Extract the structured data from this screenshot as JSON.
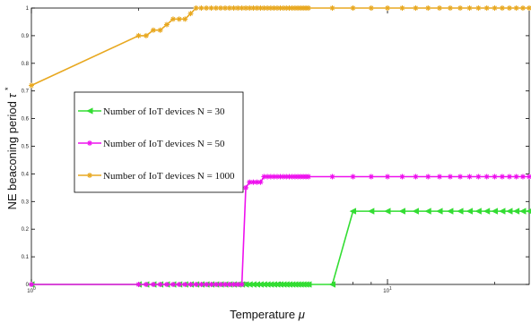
{
  "chart_data": {
    "type": "line",
    "title": "",
    "xlabel": "Temperature",
    "xlabel_symbol": "μ",
    "ylabel": "NE beaconing period",
    "ylabel_symbol": "τ",
    "ylabel_sup": "*",
    "xscale": "log",
    "xlim": [
      1,
      25
    ],
    "ylim": [
      0,
      1
    ],
    "x_ticks": [
      {
        "label_base": "10",
        "label_exp": "0"
      },
      {
        "label_base": "10",
        "label_exp": "1"
      }
    ],
    "y_ticks": [
      "0",
      "0.1",
      "0.2",
      "0.3",
      "0.4",
      "0.5",
      "0.6",
      "0.7",
      "0.8",
      "0.9",
      "1"
    ],
    "grid": false,
    "legend_position": "left-middle",
    "series": [
      {
        "name": "Number of IoT devices N = 30",
        "color": "#33dd33",
        "marker": "triangle-left",
        "x": [
          1,
          2.0,
          2.1,
          2.2,
          2.3,
          2.4,
          2.5,
          2.6,
          2.7,
          2.8,
          2.9,
          3.0,
          3.1,
          3.2,
          3.3,
          3.4,
          3.5,
          3.6,
          3.7,
          3.8,
          3.9,
          4.0,
          4.1,
          4.2,
          4.3,
          4.4,
          4.5,
          4.6,
          4.7,
          4.8,
          4.9,
          5.0,
          5.1,
          5.2,
          5.3,
          5.4,
          5.5,
          5.6,
          5.7,
          5.8,
          5.9,
          6.0,
          7.0,
          8.0,
          9.0,
          10.0,
          11.0,
          12.0,
          13.0,
          14.0,
          15.0,
          16.0,
          17.0,
          18.0,
          19.0,
          20.0,
          21.0,
          22.0,
          23.0,
          24.0,
          25.0
        ],
        "y": [
          0,
          0,
          0,
          0,
          0,
          0,
          0,
          0,
          0,
          0,
          0,
          0,
          0,
          0,
          0,
          0,
          0,
          0,
          0,
          0,
          0,
          0,
          0,
          0,
          0,
          0,
          0,
          0,
          0,
          0,
          0,
          0,
          0,
          0,
          0,
          0,
          0,
          0,
          0,
          0,
          0,
          0,
          0,
          0.265,
          0.265,
          0.265,
          0.265,
          0.265,
          0.265,
          0.265,
          0.265,
          0.265,
          0.265,
          0.265,
          0.265,
          0.265,
          0.265,
          0.265,
          0.265,
          0.265,
          0.265
        ]
      },
      {
        "name": "Number of IoT devices N = 50",
        "color": "#ee11ee",
        "marker": "star",
        "x": [
          1,
          2.0,
          2.1,
          2.2,
          2.3,
          2.4,
          2.5,
          2.6,
          2.7,
          2.8,
          2.9,
          3.0,
          3.1,
          3.2,
          3.3,
          3.4,
          3.5,
          3.6,
          3.7,
          3.8,
          3.9,
          4.0,
          4.1,
          4.2,
          4.3,
          4.4,
          4.5,
          4.6,
          4.7,
          4.8,
          4.9,
          5.0,
          5.1,
          5.2,
          5.3,
          5.4,
          5.5,
          5.6,
          5.7,
          5.8,
          5.9,
          6.0,
          7.0,
          8.0,
          9.0,
          10.0,
          11.0,
          12.0,
          13.0,
          14.0,
          15.0,
          16.0,
          17.0,
          18.0,
          19.0,
          20.0,
          21.0,
          22.0,
          23.0,
          24.0,
          25.0
        ],
        "y": [
          0,
          0,
          0,
          0,
          0,
          0,
          0,
          0,
          0,
          0,
          0,
          0,
          0,
          0,
          0,
          0,
          0,
          0,
          0,
          0,
          0,
          0.35,
          0.37,
          0.37,
          0.37,
          0.37,
          0.39,
          0.39,
          0.39,
          0.39,
          0.39,
          0.39,
          0.39,
          0.39,
          0.39,
          0.39,
          0.39,
          0.39,
          0.39,
          0.39,
          0.39,
          0.39,
          0.39,
          0.39,
          0.39,
          0.39,
          0.39,
          0.39,
          0.39,
          0.39,
          0.39,
          0.39,
          0.39,
          0.39,
          0.39,
          0.39,
          0.39,
          0.39,
          0.39,
          0.39,
          0.39
        ]
      },
      {
        "name": "Number of IoT devices N = 1000",
        "color": "#e8a820",
        "marker": "star",
        "x": [
          1,
          2.0,
          2.1,
          2.2,
          2.3,
          2.4,
          2.5,
          2.6,
          2.7,
          2.8,
          2.9,
          3.0,
          3.1,
          3.2,
          3.3,
          3.4,
          3.5,
          3.6,
          3.7,
          3.8,
          3.9,
          4.0,
          4.1,
          4.2,
          4.3,
          4.4,
          4.5,
          4.6,
          4.7,
          4.8,
          4.9,
          5.0,
          5.1,
          5.2,
          5.3,
          5.4,
          5.5,
          5.6,
          5.7,
          5.8,
          5.9,
          6.0,
          7.0,
          8.0,
          9.0,
          10.0,
          11.0,
          12.0,
          13.0,
          14.0,
          15.0,
          16.0,
          17.0,
          18.0,
          19.0,
          20.0,
          21.0,
          22.0,
          23.0,
          24.0,
          25.0
        ],
        "y": [
          0.72,
          0.9,
          0.9,
          0.92,
          0.92,
          0.94,
          0.96,
          0.96,
          0.96,
          0.98,
          1,
          1,
          1,
          1,
          1,
          1,
          1,
          1,
          1,
          1,
          1,
          1,
          1,
          1,
          1,
          1,
          1,
          1,
          1,
          1,
          1,
          1,
          1,
          1,
          1,
          1,
          1,
          1,
          1,
          1,
          1,
          1,
          1,
          1,
          1,
          1,
          1,
          1,
          1,
          1,
          1,
          1,
          1,
          1,
          1,
          1,
          1,
          1,
          1,
          1,
          1
        ]
      }
    ]
  }
}
